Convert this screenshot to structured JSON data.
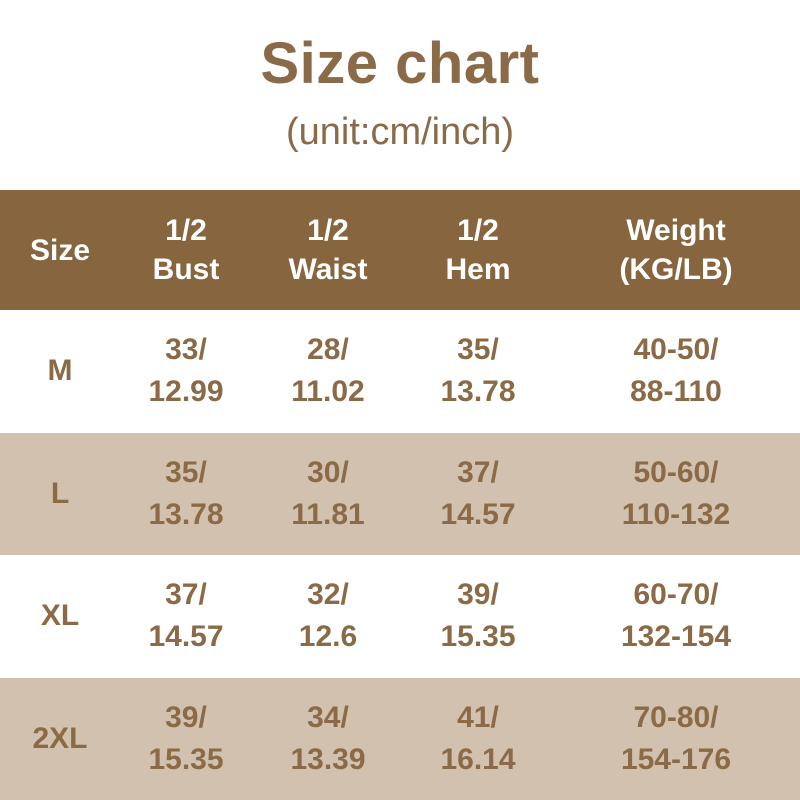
{
  "page": {
    "title": "Size chart",
    "subtitle": "(unit:cm/inch)"
  },
  "colors": {
    "header_background": "#87653e",
    "alt_row_background": "#d2c1ae",
    "text_brown": "#8a6a47",
    "header_text": "#ffffff"
  },
  "table": {
    "header_cells": [
      "Size",
      "1/2\nBust",
      "1/2\nWaist",
      "1/2\nHem",
      "Weight\n(KG/LB)"
    ],
    "rows": [
      [
        "M",
        "33/\n12.99",
        "28/\n11.02",
        "35/\n13.78",
        "40-50/\n88-110"
      ],
      [
        "L",
        "35/\n13.78",
        "30/\n11.81",
        "37/\n14.57",
        "50-60/\n110-132"
      ],
      [
        "XL",
        "37/\n14.57",
        "32/\n12.6",
        "39/\n15.35",
        "60-70/\n132-154"
      ],
      [
        "2XL",
        "39/\n15.35",
        "34/\n13.39",
        "41/\n16.14",
        "70-80/\n154-176"
      ]
    ]
  },
  "chart_data": {
    "type": "table",
    "title": "Size chart",
    "unit_note": "(unit:cm/inch)",
    "columns": [
      "Size",
      "1/2 Bust",
      "1/2 Waist",
      "1/2 Hem",
      "Weight (KG/LB)"
    ],
    "rows": [
      {
        "size": "M",
        "half_bust_cm": 33,
        "half_bust_in": 12.99,
        "half_waist_cm": 28,
        "half_waist_in": 11.02,
        "half_hem_cm": 35,
        "half_hem_in": 13.78,
        "weight_kg": "40-50",
        "weight_lb": "88-110"
      },
      {
        "size": "L",
        "half_bust_cm": 35,
        "half_bust_in": 13.78,
        "half_waist_cm": 30,
        "half_waist_in": 11.81,
        "half_hem_cm": 37,
        "half_hem_in": 14.57,
        "weight_kg": "50-60",
        "weight_lb": "110-132"
      },
      {
        "size": "XL",
        "half_bust_cm": 37,
        "half_bust_in": 14.57,
        "half_waist_cm": 32,
        "half_waist_in": 12.6,
        "half_hem_cm": 39,
        "half_hem_in": 15.35,
        "weight_kg": "60-70",
        "weight_lb": "132-154"
      },
      {
        "size": "2XL",
        "half_bust_cm": 39,
        "half_bust_in": 15.35,
        "half_waist_cm": 34,
        "half_waist_in": 13.39,
        "half_hem_cm": 41,
        "half_hem_in": 16.14,
        "weight_kg": "70-80",
        "weight_lb": "154-176"
      }
    ]
  }
}
